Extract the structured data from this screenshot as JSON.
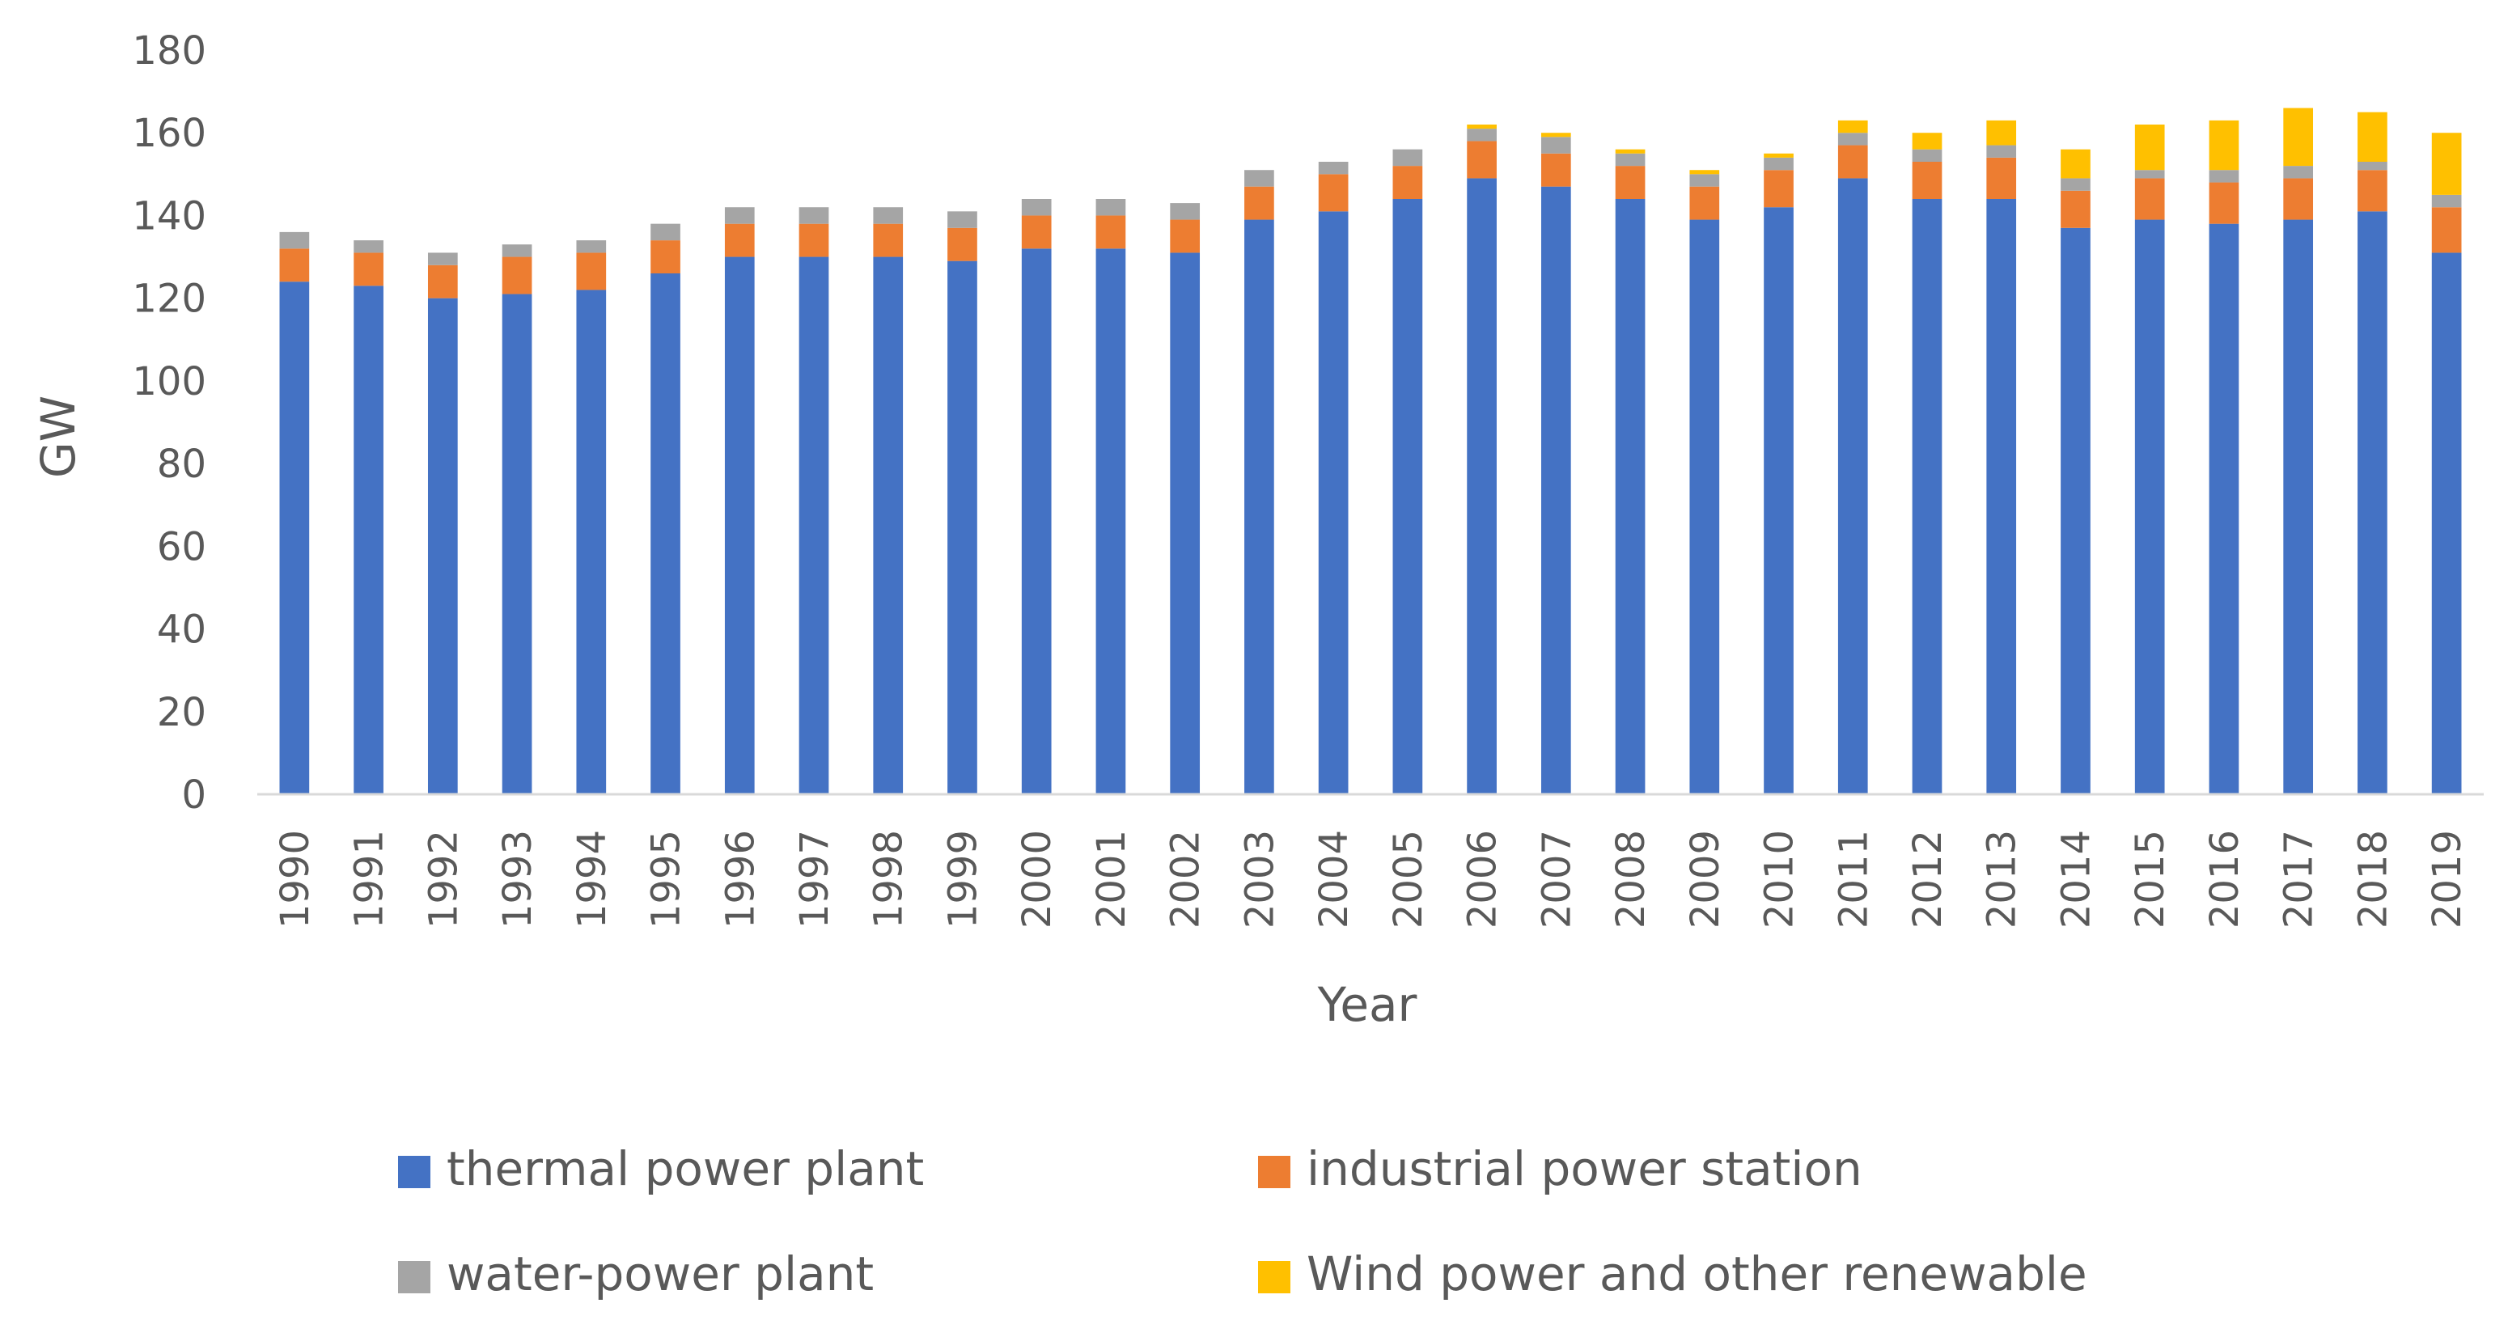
{
  "chart_data": {
    "type": "bar",
    "stacked": true,
    "title": "",
    "xlabel": "Year",
    "ylabel": "GW",
    "ylim": [
      0,
      180
    ],
    "yticks": [
      0,
      20,
      40,
      60,
      80,
      100,
      120,
      140,
      160,
      180
    ],
    "grid": false,
    "legend_position": "bottom",
    "categories": [
      "1990",
      "1991",
      "1992",
      "1993",
      "1994",
      "1995",
      "1996",
      "1997",
      "1998",
      "1999",
      "2000",
      "2001",
      "2002",
      "2003",
      "2004",
      "2005",
      "2006",
      "2007",
      "2008",
      "2009",
      "2010",
      "2011",
      "2012",
      "2013",
      "2014",
      "2015",
      "2016",
      "2017",
      "2018",
      "2019"
    ],
    "series": [
      {
        "name": "thermal power plant",
        "color": "#4472C4",
        "values": [
          124,
          123,
          120,
          121,
          122,
          126,
          130,
          130,
          130,
          129,
          132,
          132,
          131,
          139,
          141,
          144,
          149,
          147,
          144,
          139,
          142,
          149,
          144,
          144,
          137,
          139,
          138,
          139,
          141,
          131
        ]
      },
      {
        "name": "industrial power station",
        "color": "#ED7D31",
        "values": [
          8,
          8,
          8,
          9,
          9,
          8,
          8,
          8,
          8,
          8,
          8,
          8,
          8,
          8,
          9,
          8,
          9,
          8,
          8,
          8,
          9,
          8,
          9,
          10,
          9,
          10,
          10,
          10,
          10,
          11
        ]
      },
      {
        "name": "water-power plant",
        "color": "#A5A5A5",
        "values": [
          4,
          3,
          3,
          3,
          3,
          4,
          4,
          4,
          4,
          4,
          4,
          4,
          4,
          4,
          3,
          4,
          3,
          4,
          3,
          3,
          3,
          3,
          3,
          3,
          3,
          2,
          3,
          3,
          2,
          3
        ]
      },
      {
        "name": "Wind power and other renewable",
        "color": "#FFC000",
        "values": [
          0,
          0,
          0,
          0,
          0,
          0,
          0,
          0,
          0,
          0,
          0,
          0,
          0,
          0,
          0,
          0,
          1,
          1,
          1,
          1,
          1,
          3,
          4,
          6,
          7,
          11,
          12,
          14,
          12,
          15
        ]
      }
    ]
  }
}
